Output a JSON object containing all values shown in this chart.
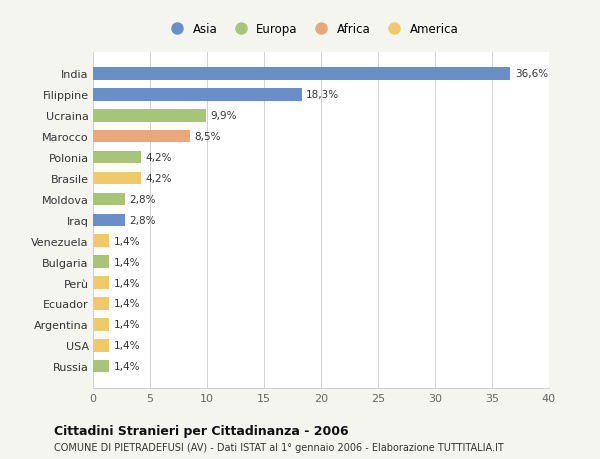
{
  "categories": [
    "Russia",
    "USA",
    "Argentina",
    "Ecuador",
    "Perù",
    "Bulgaria",
    "Venezuela",
    "Iraq",
    "Moldova",
    "Brasile",
    "Polonia",
    "Marocco",
    "Ucraina",
    "Filippine",
    "India"
  ],
  "values": [
    1.4,
    1.4,
    1.4,
    1.4,
    1.4,
    1.4,
    1.4,
    2.8,
    2.8,
    4.2,
    4.2,
    8.5,
    9.9,
    18.3,
    36.6
  ],
  "colors": [
    "#a8c47a",
    "#f0c96a",
    "#f0c96a",
    "#f0c96a",
    "#f0c96a",
    "#a8c47a",
    "#f0c96a",
    "#6a8fc8",
    "#a8c47a",
    "#f0c96a",
    "#a8c47a",
    "#e8a87c",
    "#a8c47a",
    "#6a8fc8",
    "#6a8fc8"
  ],
  "labels": [
    "1,4%",
    "1,4%",
    "1,4%",
    "1,4%",
    "1,4%",
    "1,4%",
    "1,4%",
    "2,8%",
    "2,8%",
    "4,2%",
    "4,2%",
    "8,5%",
    "9,9%",
    "18,3%",
    "36,6%"
  ],
  "legend": {
    "Asia": "#6a8fc8",
    "Europa": "#a8c47a",
    "Africa": "#e8a87c",
    "America": "#f0c96a"
  },
  "title": "Cittadini Stranieri per Cittadinanza - 2006",
  "subtitle": "COMUNE DI PIETRADEFUSI (AV) - Dati ISTAT al 1° gennaio 2006 - Elaborazione TUTTITALIA.IT",
  "xlim": [
    0,
    40
  ],
  "xticks": [
    0,
    5,
    10,
    15,
    20,
    25,
    30,
    35,
    40
  ],
  "background_color": "#f5f5f0",
  "bar_background": "#ffffff",
  "bar_height": 0.6
}
